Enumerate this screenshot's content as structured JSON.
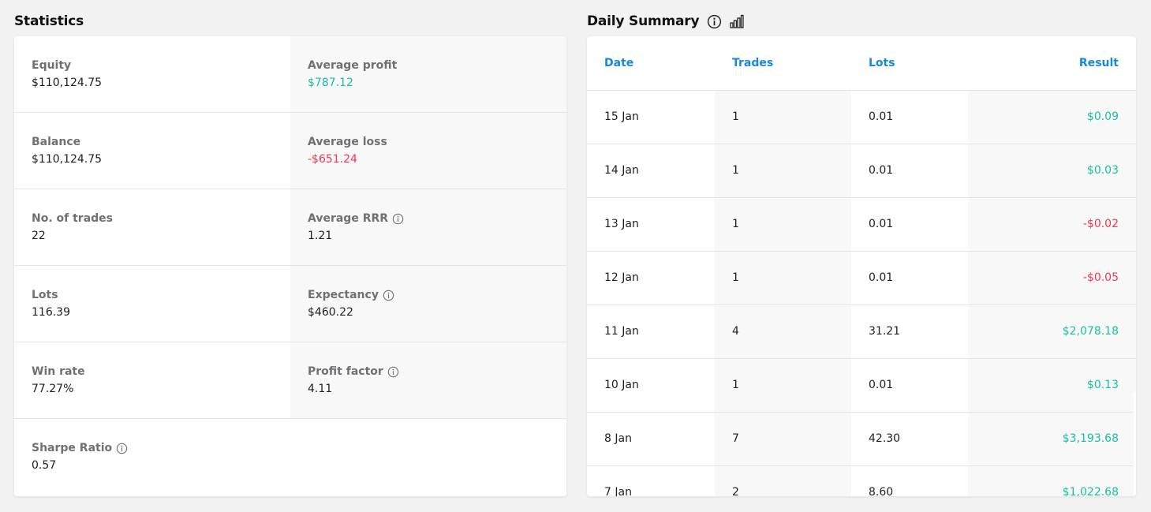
{
  "statistics": {
    "title": "Statistics",
    "rows": [
      {
        "left": {
          "label": "Equity",
          "value": "$110,124.75",
          "tone": "neutral",
          "info": false
        },
        "right": {
          "label": "Average profit",
          "value": "$787.12",
          "tone": "pos",
          "info": false
        }
      },
      {
        "left": {
          "label": "Balance",
          "value": "$110,124.75",
          "tone": "neutral",
          "info": false
        },
        "right": {
          "label": "Average loss",
          "value": "-$651.24",
          "tone": "neg",
          "info": false
        }
      },
      {
        "left": {
          "label": "No. of trades",
          "value": "22",
          "tone": "neutral",
          "info": false
        },
        "right": {
          "label": "Average RRR",
          "value": "1.21",
          "tone": "neutral",
          "info": true
        }
      },
      {
        "left": {
          "label": "Lots",
          "value": "116.39",
          "tone": "neutral",
          "info": false
        },
        "right": {
          "label": "Expectancy",
          "value": "$460.22",
          "tone": "neutral",
          "info": true
        }
      },
      {
        "left": {
          "label": "Win rate",
          "value": "77.27%",
          "tone": "neutral",
          "info": false
        },
        "right": {
          "label": "Profit factor",
          "value": "4.11",
          "tone": "neutral",
          "info": true
        }
      },
      {
        "left": {
          "label": "Sharpe Ratio",
          "value": "0.57",
          "tone": "neutral",
          "info": true
        },
        "right": null
      }
    ]
  },
  "daily_summary": {
    "title": "Daily Summary",
    "icons": [
      "info-icon",
      "bar-chart-icon"
    ],
    "columns": {
      "date": "Date",
      "trades": "Trades",
      "lots": "Lots",
      "result": "Result"
    },
    "rows": [
      {
        "date": "15 Jan",
        "trades": "1",
        "lots": "0.01",
        "result": "$0.09",
        "tone": "pos"
      },
      {
        "date": "14 Jan",
        "trades": "1",
        "lots": "0.01",
        "result": "$0.03",
        "tone": "pos"
      },
      {
        "date": "13 Jan",
        "trades": "1",
        "lots": "0.01",
        "result": "-$0.02",
        "tone": "neg"
      },
      {
        "date": "12 Jan",
        "trades": "1",
        "lots": "0.01",
        "result": "-$0.05",
        "tone": "neg"
      },
      {
        "date": "11 Jan",
        "trades": "4",
        "lots": "31.21",
        "result": "$2,078.18",
        "tone": "pos"
      },
      {
        "date": "10 Jan",
        "trades": "1",
        "lots": "0.01",
        "result": "$0.13",
        "tone": "pos"
      },
      {
        "date": "8 Jan",
        "trades": "7",
        "lots": "42.30",
        "result": "$3,193.68",
        "tone": "pos"
      },
      {
        "date": "7 Jan",
        "trades": "2",
        "lots": "8.60",
        "result": "$1,022.68",
        "tone": "pos"
      }
    ]
  },
  "colors": {
    "positive": "#17c0a3",
    "negative": "#f0394f",
    "header_link": "#1787e0",
    "label_gray": "#6e7073"
  }
}
